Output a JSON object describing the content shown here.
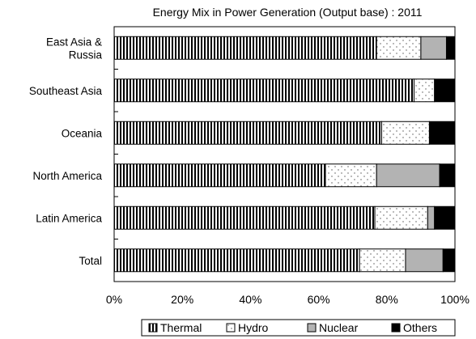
{
  "chart_data": {
    "type": "bar",
    "orientation": "horizontal",
    "stacked": true,
    "percent_stacked": true,
    "title": "Energy Mix in Power Generation (Output base) : 2011",
    "xlabel": "",
    "ylabel": "",
    "xlim": [
      0,
      100
    ],
    "x_ticks": [
      "0%",
      "20%",
      "40%",
      "60%",
      "80%",
      "100%"
    ],
    "grid": false,
    "legend_position": "bottom",
    "categories": [
      "East Asia &\nRussia",
      "Southeast Asia",
      "Oceania",
      "North America",
      "Latin America",
      "Total"
    ],
    "series": [
      {
        "name": "Thermal",
        "pattern": "vertical-stripes",
        "color": "#000000",
        "values": [
          77,
          88,
          78.5,
          62,
          76.5,
          72
        ]
      },
      {
        "name": "Hydro",
        "pattern": "dots",
        "color": "#ffffff",
        "values": [
          13,
          6,
          14,
          15,
          15.5,
          13.5
        ]
      },
      {
        "name": "Nuclear",
        "pattern": "solid",
        "color": "#b3b3b3",
        "values": [
          7.5,
          0,
          0,
          18.5,
          2,
          11
        ]
      },
      {
        "name": "Others",
        "pattern": "solid",
        "color": "#000000",
        "values": [
          2.5,
          6,
          7.5,
          4.5,
          6,
          3.5
        ]
      }
    ]
  }
}
